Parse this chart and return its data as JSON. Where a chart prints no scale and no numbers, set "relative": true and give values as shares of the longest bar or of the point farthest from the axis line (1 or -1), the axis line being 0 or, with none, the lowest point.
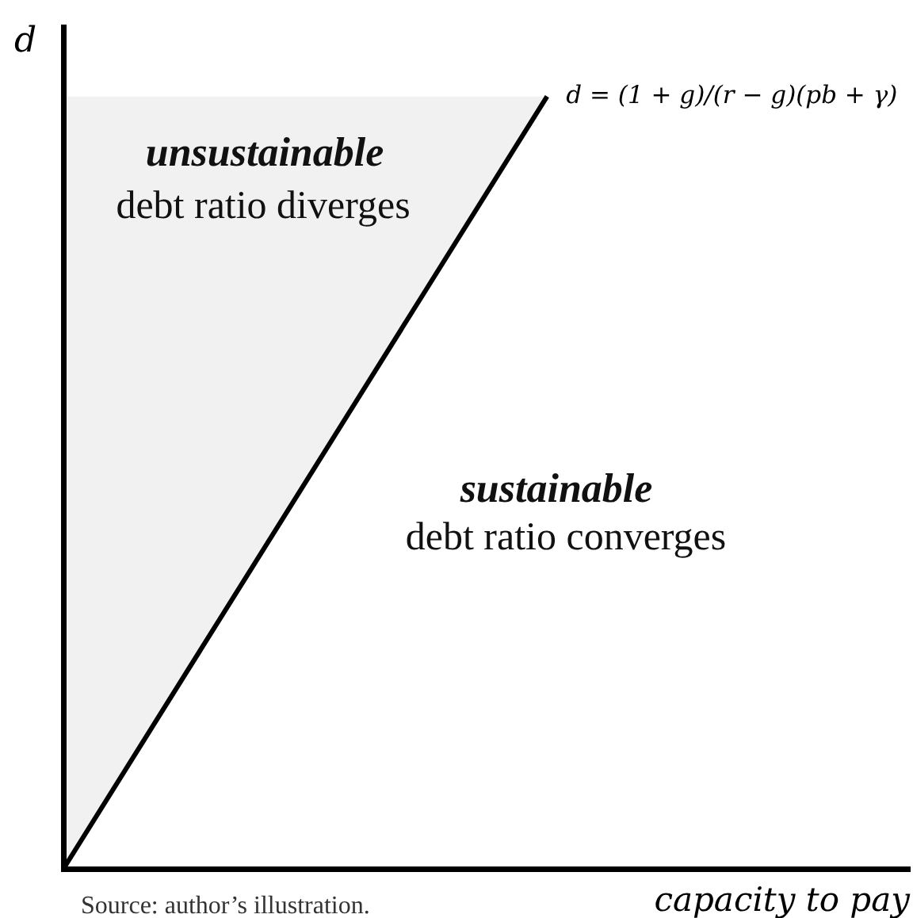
{
  "chart_data": {
    "type": "line",
    "xlabel": "capacity to pay",
    "ylabel": "d",
    "relative": true,
    "tick_labels": false,
    "marker": "none",
    "categories": [
      null,
      null,
      null,
      null,
      null,
      null,
      null,
      null
    ],
    "series": [
      {
        "name": "d = (1 + g)/(r − g)(pb + γ)",
        "color": "#000000",
        "values": [
          0,
          0.25,
          0.5,
          0.75,
          1,
          null,
          null,
          null
        ],
        "lower": [
          0,
          0.25,
          0.5,
          0.75,
          1,
          null,
          null,
          null
        ],
        "upper": [
          1,
          1,
          1,
          1,
          1,
          null,
          null,
          null
        ]
      }
    ],
    "annotations": [
      "unsustainable",
      "debt ratio diverges",
      "sustainable",
      "debt ratio converges",
      "Source: author’s illustration."
    ]
  }
}
